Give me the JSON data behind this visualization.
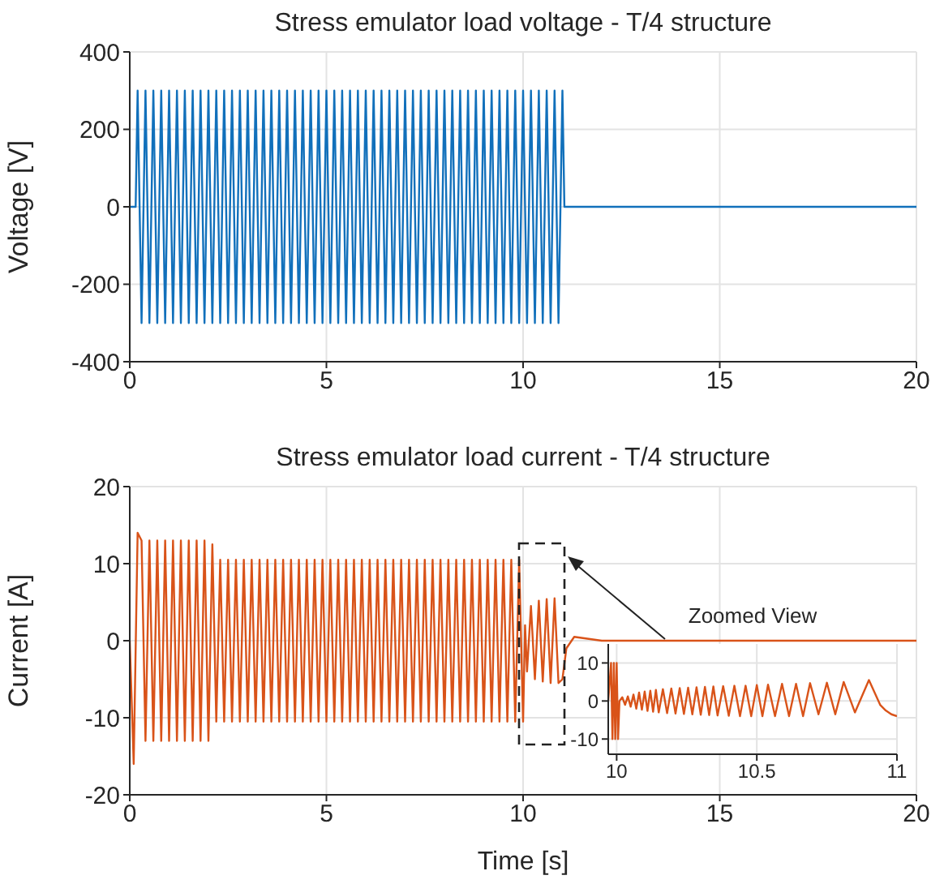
{
  "chart_data": [
    {
      "type": "line",
      "title": "Stress emulator load voltage - T/4 structure",
      "ylabel": "Voltage [V]",
      "x": [
        0,
        0.15,
        0.2,
        0.3,
        0.4,
        0.5,
        0.6,
        0.7,
        0.8,
        0.9,
        1.0,
        1.1,
        1.2,
        1.3,
        1.4,
        1.5,
        1.6,
        1.7,
        1.8,
        1.9,
        2.0,
        2.1,
        2.2,
        2.3,
        2.4,
        2.5,
        2.6,
        2.7,
        2.8,
        2.9,
        3.0,
        3.1,
        3.2,
        3.3,
        3.4,
        3.5,
        3.6,
        3.7,
        3.8,
        3.9,
        4.0,
        4.1,
        4.2,
        4.3,
        4.4,
        4.5,
        4.6,
        4.7,
        4.8,
        4.9,
        5.0,
        5.1,
        5.2,
        5.3,
        5.4,
        5.5,
        5.6,
        5.7,
        5.8,
        5.9,
        6.0,
        6.1,
        6.2,
        6.3,
        6.4,
        6.5,
        6.6,
        6.7,
        6.8,
        6.9,
        7.0,
        7.1,
        7.2,
        7.3,
        7.4,
        7.5,
        7.6,
        7.7,
        7.8,
        7.9,
        8.0,
        8.1,
        8.2,
        8.3,
        8.4,
        8.5,
        8.6,
        8.7,
        8.8,
        8.9,
        9.0,
        9.1,
        9.2,
        9.3,
        9.4,
        9.5,
        9.6,
        9.7,
        9.8,
        9.9,
        10.0,
        10.1,
        10.2,
        10.3,
        10.4,
        10.5,
        10.6,
        10.7,
        10.8,
        10.9,
        11.0,
        11.05,
        20
      ],
      "series": [
        {
          "color": "#1170bb",
          "values": [
            0,
            0,
            300,
            -300,
            300,
            -300,
            300,
            -300,
            300,
            -300,
            300,
            -300,
            300,
            -300,
            300,
            -300,
            300,
            -300,
            300,
            -300,
            300,
            -300,
            300,
            -300,
            300,
            -300,
            300,
            -300,
            300,
            -300,
            300,
            -300,
            300,
            -300,
            300,
            -300,
            300,
            -300,
            300,
            -300,
            300,
            -300,
            300,
            -300,
            300,
            -300,
            300,
            -300,
            300,
            -300,
            300,
            -300,
            300,
            -300,
            300,
            -300,
            300,
            -300,
            300,
            -300,
            300,
            -300,
            300,
            -300,
            300,
            -300,
            300,
            -300,
            300,
            -300,
            300,
            -300,
            300,
            -300,
            300,
            -300,
            300,
            -300,
            300,
            -300,
            300,
            -300,
            300,
            -300,
            300,
            -300,
            300,
            -300,
            300,
            -300,
            300,
            -300,
            300,
            -300,
            300,
            -300,
            300,
            -300,
            300,
            -300,
            300,
            -300,
            300,
            -300,
            300,
            -300,
            300,
            -300,
            300,
            -300,
            300,
            0,
            0
          ]
        }
      ],
      "xlim": [
        0,
        20
      ],
      "ylim": [
        -400,
        400
      ],
      "xticks": [
        0,
        5,
        10,
        15,
        20
      ],
      "yticks": [
        -400,
        -200,
        0,
        200,
        400
      ],
      "grid": true
    },
    {
      "type": "line",
      "title": "Stress emulator load current - T/4 structure",
      "xlabel": "Time [s]",
      "ylabel": "Current [A]",
      "x": [
        0,
        0.1,
        0.2,
        0.3,
        0.4,
        0.5,
        0.6,
        0.7,
        0.8,
        0.9,
        1.0,
        1.1,
        1.2,
        1.3,
        1.4,
        1.5,
        1.6,
        1.7,
        1.8,
        1.9,
        2.0,
        2.1,
        2.2,
        2.3,
        2.4,
        2.5,
        2.6,
        2.7,
        2.8,
        2.9,
        3.0,
        3.1,
        3.2,
        3.3,
        3.4,
        3.5,
        3.6,
        3.7,
        3.8,
        3.9,
        4.0,
        4.1,
        4.2,
        4.3,
        4.4,
        4.5,
        4.6,
        4.7,
        4.8,
        4.9,
        5.0,
        5.1,
        5.2,
        5.3,
        5.4,
        5.5,
        5.6,
        5.7,
        5.8,
        5.9,
        6.0,
        6.1,
        6.2,
        6.3,
        6.4,
        6.5,
        6.6,
        6.7,
        6.8,
        6.9,
        7.0,
        7.1,
        7.2,
        7.3,
        7.4,
        7.5,
        7.6,
        7.7,
        7.8,
        7.9,
        8.0,
        8.1,
        8.2,
        8.3,
        8.4,
        8.5,
        8.6,
        8.7,
        8.8,
        8.9,
        9.0,
        9.1,
        9.2,
        9.3,
        9.4,
        9.5,
        9.6,
        9.7,
        9.8,
        9.9,
        10.0,
        10.05,
        10.1,
        10.2,
        10.3,
        10.4,
        10.5,
        10.6,
        10.7,
        10.8,
        10.9,
        11.0,
        11.1,
        11.3,
        12,
        20
      ],
      "series": [
        {
          "color": "#d95319",
          "values": [
            0,
            -16,
            14,
            13,
            -13,
            13,
            -13,
            13,
            -13,
            13,
            -13,
            13,
            -13,
            13,
            -13,
            13,
            -13,
            13,
            -13,
            13,
            -13,
            12.5,
            -10.5,
            10.5,
            -10.5,
            10.5,
            -10.5,
            10.5,
            -10.5,
            10.5,
            -10.5,
            10.5,
            -10.5,
            10.5,
            -10.5,
            10.5,
            -10.5,
            10.5,
            -10.5,
            10.5,
            -10.5,
            10.5,
            -10.5,
            10.5,
            -10.5,
            10.5,
            -10.5,
            10.5,
            -10.5,
            10.5,
            -10.5,
            10.5,
            -10.5,
            10.5,
            -10.5,
            10.5,
            -10.5,
            10.5,
            -10.5,
            10.5,
            -10.5,
            10.5,
            -10.5,
            10.5,
            -10.5,
            10.5,
            -10.5,
            10.5,
            -10.5,
            10.5,
            -10.5,
            10.5,
            -10.5,
            10.5,
            -10.5,
            10.5,
            -10.5,
            10.5,
            -10.5,
            10.5,
            -10.5,
            10.5,
            -10.5,
            10.5,
            -10.5,
            10.5,
            -10.5,
            10.5,
            -10.5,
            10.5,
            -10.5,
            10.5,
            -10.5,
            10.5,
            -10.5,
            10.5,
            -10.5,
            10.5,
            -10.5,
            10.5,
            -10.5,
            2,
            -4,
            4.5,
            -5,
            5.2,
            -5.3,
            5.4,
            -5.5,
            5.5,
            -5.5,
            -5,
            -1,
            0.5,
            0,
            0
          ]
        }
      ],
      "xlim": [
        0,
        20
      ],
      "ylim": [
        -20,
        20
      ],
      "xticks": [
        0,
        5,
        10,
        15,
        20
      ],
      "yticks": [
        -20,
        -10,
        0,
        10,
        20
      ],
      "grid": true
    },
    {
      "type": "line",
      "title": "Zoomed View",
      "x": [
        9.97,
        9.98,
        9.985,
        9.99,
        9.995,
        10.0,
        10.005,
        10.01,
        10.02,
        10.03,
        10.04,
        10.05,
        10.06,
        10.07,
        10.08,
        10.09,
        10.1,
        10.11,
        10.12,
        10.13,
        10.14,
        10.15,
        10.165,
        10.18,
        10.195,
        10.21,
        10.225,
        10.24,
        10.255,
        10.27,
        10.285,
        10.3,
        10.315,
        10.33,
        10.345,
        10.36,
        10.38,
        10.4,
        10.42,
        10.44,
        10.46,
        10.48,
        10.5,
        10.52,
        10.54,
        10.565,
        10.59,
        10.615,
        10.64,
        10.665,
        10.69,
        10.72,
        10.75,
        10.78,
        10.81,
        10.85,
        10.9,
        10.94,
        10.96,
        10.98,
        11
      ],
      "series": [
        {
          "color": "#d95319",
          "values": [
            0,
            10,
            -10,
            10,
            -10,
            10,
            -10,
            0,
            1,
            -1,
            1.2,
            -1.5,
            1.7,
            -2,
            2.2,
            -2.3,
            2.5,
            -2.6,
            2.7,
            -2.8,
            2.9,
            -3,
            3.1,
            -3.2,
            3.3,
            -3.3,
            3.4,
            -3.4,
            3.5,
            -3.5,
            3.6,
            -3.6,
            3.7,
            -3.7,
            3.8,
            -3.8,
            3.9,
            -3.9,
            4,
            -4,
            4,
            -4,
            4.2,
            -4,
            4.3,
            -4,
            4.5,
            -4,
            4.5,
            -4,
            4.7,
            -3.5,
            4.8,
            -3.5,
            5,
            -3,
            5.5,
            -1,
            -2.5,
            -3.5,
            -4
          ]
        }
      ],
      "xlim": [
        9.97,
        11
      ],
      "ylim": [
        -14,
        15
      ],
      "xticks": [
        10,
        10.5,
        11
      ],
      "yticks": [
        -10,
        0,
        10
      ],
      "grid": true
    }
  ]
}
